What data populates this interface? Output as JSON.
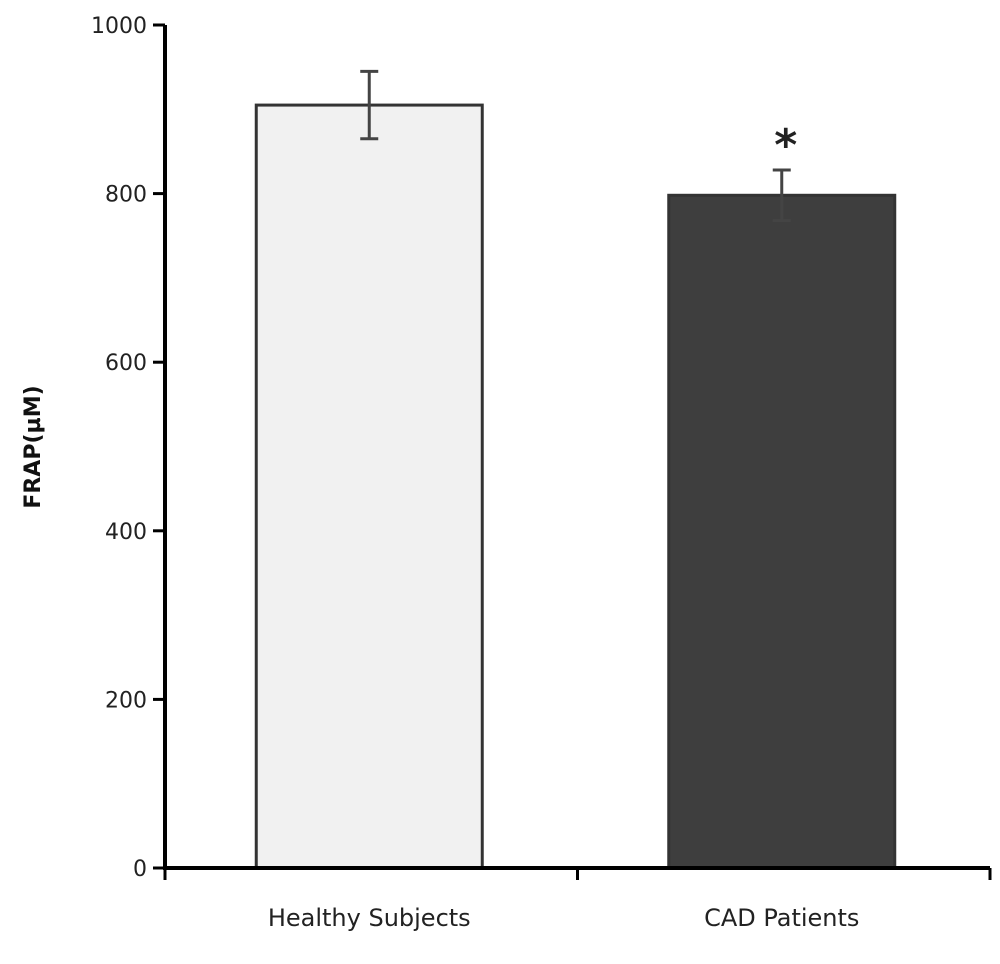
{
  "chart_data": {
    "type": "bar",
    "title": "",
    "xlabel": "",
    "ylabel": "FRAP(µM)",
    "ylim": [
      0,
      1000
    ],
    "yticks": [
      0,
      200,
      400,
      600,
      800,
      1000
    ],
    "grid": false,
    "categories": [
      "Healthy Subjects",
      "CAD Patients"
    ],
    "values": [
      905,
      798
    ],
    "errors": [
      40,
      30
    ],
    "bar_colors": [
      "#f1f1f1",
      "#3e3e3e"
    ],
    "annotations": [
      {
        "category": "CAD Patients",
        "text": "*"
      }
    ]
  }
}
